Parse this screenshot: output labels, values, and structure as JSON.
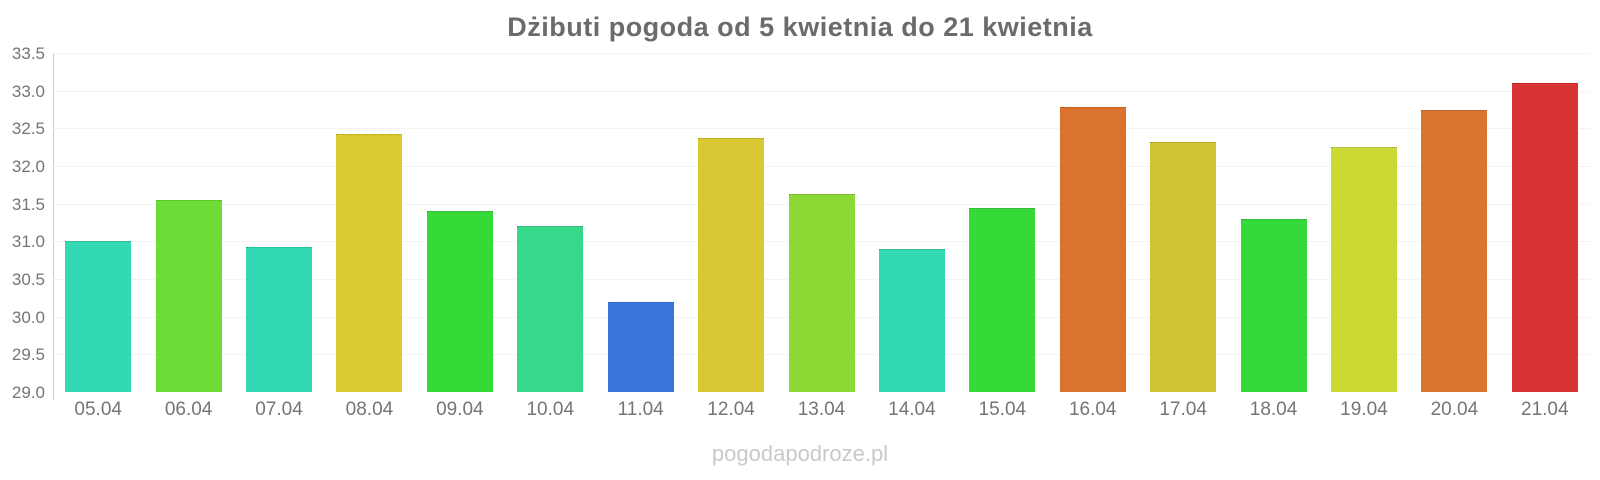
{
  "title": "Dżibuti pogoda od 5 kwietnia do 21 kwietnia",
  "watermark": "pogodapodroze.pl",
  "chart_data": {
    "type": "bar",
    "title": "Dżibuti pogoda od 5 kwietnia do 21 kwietnia",
    "categories": [
      "05.04",
      "06.04",
      "07.04",
      "08.04",
      "09.04",
      "10.04",
      "11.04",
      "12.04",
      "13.04",
      "14.04",
      "15.04",
      "16.04",
      "17.04",
      "18.04",
      "19.04",
      "20.04",
      "21.04"
    ],
    "values": [
      31.0,
      31.55,
      30.93,
      32.42,
      31.4,
      31.2,
      30.2,
      32.37,
      31.63,
      30.9,
      31.44,
      32.78,
      32.32,
      31.3,
      32.25,
      32.75,
      33.1
    ],
    "bar_colors": [
      "#33d9b2",
      "#6ddc38",
      "#33d9b2",
      "#dcca34",
      "#35d938",
      "#35d989",
      "#3876db",
      "#d8c834",
      "#8cd935",
      "#33d9b2",
      "#35d938",
      "#d9732e",
      "#d2c235",
      "#32d938",
      "#ccd935",
      "#d9752e",
      "#d93434"
    ],
    "xlabel": "",
    "ylabel": "",
    "ylim": [
      29.0,
      33.5
    ],
    "ytick_step": 0.5,
    "ytick_labels": [
      "33.5",
      "33.0",
      "32.5",
      "32.0",
      "31.5",
      "31.0",
      "30.5",
      "30.0",
      "29.5",
      "29.0"
    ],
    "grid": true,
    "legend": false
  },
  "colors": {
    "background": "#ffffff",
    "title_text": "#6b6b6b",
    "axis_text": "#757575",
    "axis_line": "#c9c9c9",
    "gridline": "#e7e7e7",
    "watermark_text": "#c9c9c9"
  }
}
